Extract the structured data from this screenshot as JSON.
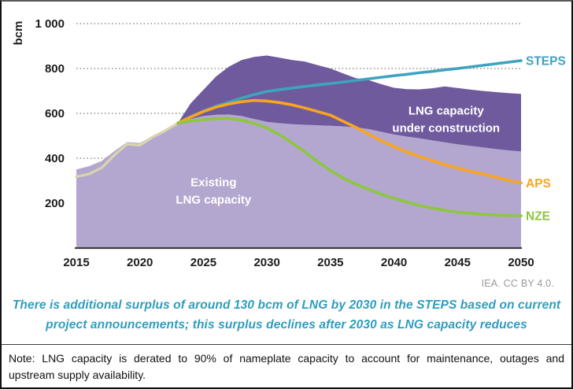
{
  "chart_data": {
    "type": "area",
    "title": "",
    "ylabel": "bcm",
    "xlabel": "",
    "ylim": [
      0,
      1000
    ],
    "xlim": [
      2015,
      2050
    ],
    "grid": "dotted-horizontal",
    "x_ticks": [
      2015,
      2020,
      2025,
      2030,
      2035,
      2040,
      2045,
      2050
    ],
    "y_ticks": [
      {
        "value": 200,
        "label": "200"
      },
      {
        "value": 400,
        "label": "400"
      },
      {
        "value": 600,
        "label": "600"
      },
      {
        "value": 800,
        "label": "800"
      },
      {
        "value": 1000,
        "label": "1 000"
      }
    ],
    "areas": [
      {
        "id": "existing-capacity",
        "label": "Existing LNG capacity",
        "label_lines": [
          "Existing",
          "LNG capacity"
        ],
        "label_pos": [
          2025.8,
          262
        ],
        "color": "#b4a7cf",
        "upper": [
          [
            2015,
            350
          ],
          [
            2016,
            365
          ],
          [
            2017,
            388
          ],
          [
            2018,
            432
          ],
          [
            2019,
            472
          ],
          [
            2020,
            468
          ],
          [
            2021,
            500
          ],
          [
            2022,
            527
          ],
          [
            2023,
            558
          ],
          [
            2024,
            575
          ],
          [
            2025,
            588
          ],
          [
            2026,
            594
          ],
          [
            2027,
            595
          ],
          [
            2028,
            588
          ],
          [
            2029,
            575
          ],
          [
            2030,
            562
          ],
          [
            2031,
            556
          ],
          [
            2032,
            552
          ],
          [
            2033,
            549
          ],
          [
            2034,
            547
          ],
          [
            2035,
            545
          ],
          [
            2036,
            542
          ],
          [
            2037,
            538
          ],
          [
            2038,
            530
          ],
          [
            2039,
            518
          ],
          [
            2040,
            506
          ],
          [
            2041,
            497
          ],
          [
            2042,
            489
          ],
          [
            2043,
            480
          ],
          [
            2044,
            471
          ],
          [
            2045,
            462
          ],
          [
            2046,
            455
          ],
          [
            2047,
            448
          ],
          [
            2048,
            441
          ],
          [
            2049,
            435
          ],
          [
            2050,
            430
          ]
        ],
        "baseline": 0
      },
      {
        "id": "under-construction",
        "label": "LNG capacity under construction",
        "label_lines": [
          "LNG capacity",
          "under construction"
        ],
        "label_pos": [
          2044.1,
          580
        ],
        "color": "#6f5a9d",
        "upper": [
          [
            2023,
            558
          ],
          [
            2024,
            645
          ],
          [
            2025,
            705
          ],
          [
            2026,
            765
          ],
          [
            2027,
            808
          ],
          [
            2028,
            838
          ],
          [
            2029,
            852
          ],
          [
            2030,
            858
          ],
          [
            2031,
            848
          ],
          [
            2032,
            838
          ],
          [
            2033,
            831
          ],
          [
            2034,
            815
          ],
          [
            2035,
            800
          ],
          [
            2036,
            778
          ],
          [
            2037,
            757
          ],
          [
            2038,
            748
          ],
          [
            2039,
            730
          ],
          [
            2040,
            714
          ],
          [
            2041,
            708
          ],
          [
            2042,
            707
          ],
          [
            2043,
            712
          ],
          [
            2044,
            720
          ],
          [
            2045,
            713
          ],
          [
            2046,
            706
          ],
          [
            2047,
            700
          ],
          [
            2048,
            695
          ],
          [
            2049,
            690
          ],
          [
            2050,
            687
          ]
        ],
        "lower_ref": "existing-capacity"
      }
    ],
    "series": [
      {
        "id": "history",
        "label": "",
        "color": "#d9d5ad",
        "width": 3.2,
        "points": [
          [
            2015,
            318
          ],
          [
            2016,
            330
          ],
          [
            2017,
            358
          ],
          [
            2018,
            415
          ],
          [
            2019,
            463
          ],
          [
            2020,
            458
          ],
          [
            2021,
            495
          ],
          [
            2022,
            523
          ],
          [
            2023,
            557
          ]
        ]
      },
      {
        "id": "steps",
        "label": "STEPS",
        "color": "#3fa3bf",
        "width": 3.6,
        "points": [
          [
            2023,
            557
          ],
          [
            2024,
            585
          ],
          [
            2025,
            610
          ],
          [
            2026,
            632
          ],
          [
            2027,
            650
          ],
          [
            2028,
            668
          ],
          [
            2029,
            684
          ],
          [
            2030,
            698
          ],
          [
            2031,
            706
          ],
          [
            2032,
            713
          ],
          [
            2033,
            720
          ],
          [
            2034,
            727
          ],
          [
            2035,
            733
          ],
          [
            2036,
            740
          ],
          [
            2037,
            747
          ],
          [
            2038,
            754
          ],
          [
            2039,
            761
          ],
          [
            2040,
            768
          ],
          [
            2041,
            774
          ],
          [
            2042,
            781
          ],
          [
            2043,
            787
          ],
          [
            2044,
            794
          ],
          [
            2045,
            800
          ],
          [
            2046,
            807
          ],
          [
            2047,
            814
          ],
          [
            2048,
            821
          ],
          [
            2049,
            828
          ],
          [
            2050,
            835
          ]
        ]
      },
      {
        "id": "aps",
        "label": "APS",
        "color": "#f9a51f",
        "width": 3.6,
        "points": [
          [
            2023,
            557
          ],
          [
            2024,
            584
          ],
          [
            2025,
            608
          ],
          [
            2026,
            628
          ],
          [
            2027,
            642
          ],
          [
            2028,
            652
          ],
          [
            2029,
            658
          ],
          [
            2030,
            655
          ],
          [
            2031,
            648
          ],
          [
            2032,
            638
          ],
          [
            2033,
            624
          ],
          [
            2034,
            608
          ],
          [
            2035,
            592
          ],
          [
            2036,
            565
          ],
          [
            2037,
            538
          ],
          [
            2038,
            508
          ],
          [
            2039,
            478
          ],
          [
            2040,
            452
          ],
          [
            2041,
            428
          ],
          [
            2042,
            408
          ],
          [
            2043,
            390
          ],
          [
            2044,
            372
          ],
          [
            2045,
            356
          ],
          [
            2046,
            342
          ],
          [
            2047,
            330
          ],
          [
            2048,
            316
          ],
          [
            2049,
            302
          ],
          [
            2050,
            290
          ]
        ]
      },
      {
        "id": "nze",
        "label": "NZE",
        "color": "#8dc63f",
        "width": 3.6,
        "points": [
          [
            2023,
            557
          ],
          [
            2024,
            566
          ],
          [
            2025,
            572
          ],
          [
            2026,
            576
          ],
          [
            2027,
            578
          ],
          [
            2028,
            570
          ],
          [
            2029,
            555
          ],
          [
            2030,
            535
          ],
          [
            2031,
            505
          ],
          [
            2032,
            468
          ],
          [
            2033,
            428
          ],
          [
            2034,
            385
          ],
          [
            2035,
            345
          ],
          [
            2036,
            312
          ],
          [
            2037,
            285
          ],
          [
            2038,
            262
          ],
          [
            2039,
            240
          ],
          [
            2040,
            222
          ],
          [
            2041,
            205
          ],
          [
            2042,
            190
          ],
          [
            2043,
            178
          ],
          [
            2044,
            168
          ],
          [
            2045,
            160
          ],
          [
            2046,
            155
          ],
          [
            2047,
            150
          ],
          [
            2048,
            147
          ],
          [
            2049,
            145
          ],
          [
            2050,
            144
          ]
        ]
      }
    ],
    "area_label_color": "#ffffff",
    "axis_color": "#3f3f3f",
    "grid_color": "#909090",
    "tick_text_color": "#1c1c1c"
  },
  "credit": "IEA. CC BY 4.0.",
  "caption": {
    "lines": [
      "There is additional surplus of around 130 bcm of LNG by 2030 in the STEPS based on current",
      "project announcements; this surplus declines after 2030 as LNG capacity reduces"
    ]
  },
  "note": {
    "lines": [
      "Note: LNG capacity is derated to 90% of nameplate capacity to account for maintenance, outages and",
      "upstream supply availability."
    ]
  }
}
